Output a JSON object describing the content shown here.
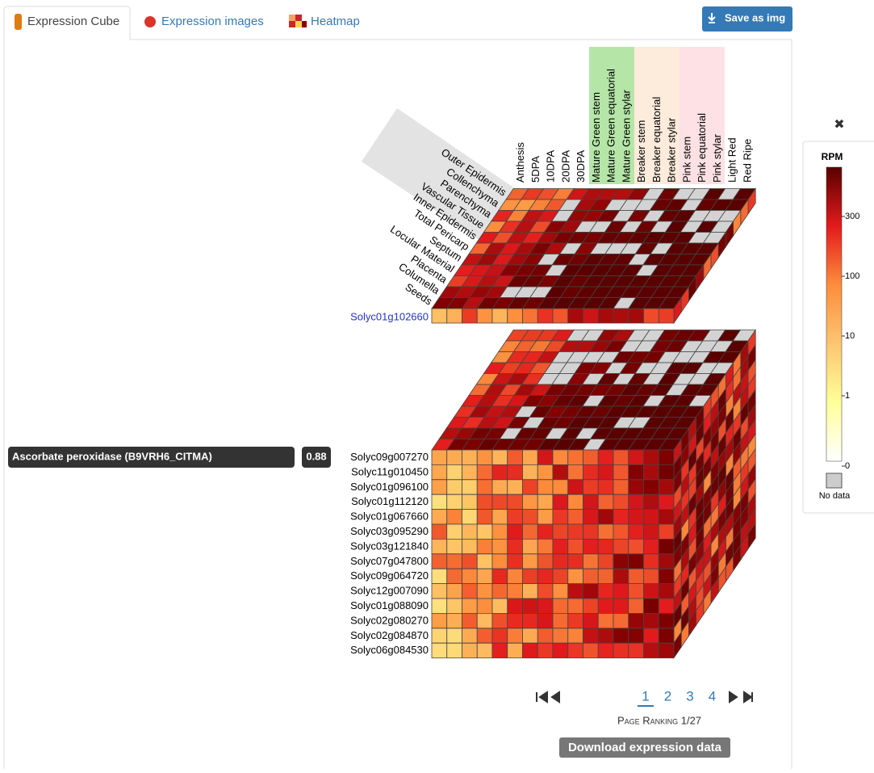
{
  "tabs": [
    "Expression Cube",
    "Expression images",
    "Heatmap"
  ],
  "save_button": "Save as img",
  "close": "✖",
  "legend": {
    "title": "RPM",
    "ticks": [
      "300",
      "100",
      "10",
      "1",
      "0"
    ],
    "no_data": "No data"
  },
  "cube": {
    "stages": [
      "Anthesis",
      "5DPA",
      "10DPA",
      "20DPA",
      "30DPA",
      "Mature Green stem",
      "Mature Green equatorial",
      "Mature Green stylar",
      "Breaker stem",
      "Breaker equatorial",
      "Breaker stylar",
      "Pink stem",
      "Pink equatorial",
      "Pink stylar",
      "Light Red",
      "Red Ripe"
    ],
    "tissues": [
      "Outer Epidermis",
      "Collenchyma",
      "Parenchyma",
      "Vascular Tissue",
      "Inner Epidermis",
      "Total Pericarp",
      "Septum",
      "Locular Material",
      "Placenta",
      "Columella",
      "Seeds"
    ],
    "reference_gene": "Solyc01g102660",
    "genes": [
      "Solyc09g007270",
      "Solyc11g010450",
      "Solyc01g096100",
      "Solyc01g112120",
      "Solyc01g067660",
      "Solyc03g095290",
      "Solyc03g121840",
      "Solyc07g047800",
      "Solyc09g064720",
      "Solyc12g007090",
      "Solyc01g088090",
      "Solyc02g080270",
      "Solyc02g084870",
      "Solyc06g084530"
    ]
  },
  "description": {
    "label": "Ascorbate peroxidase (B9VRH6_CITMA)",
    "score": "0.88"
  },
  "pagination": {
    "pages": [
      "1",
      "2",
      "3",
      "4"
    ],
    "ranking": "Page Ranking 1/27"
  },
  "download_button": "Download expression data"
}
